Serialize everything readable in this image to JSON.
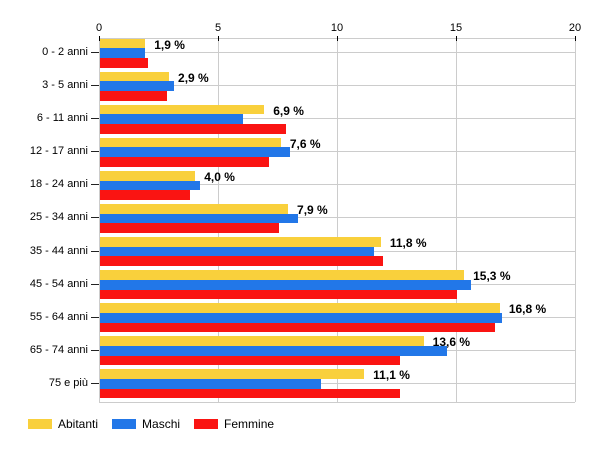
{
  "chart_data": {
    "type": "bar",
    "orientation": "horizontal",
    "title": "",
    "xlabel": "",
    "ylabel": "",
    "xlim": [
      0,
      20
    ],
    "x_ticks": [
      0,
      5,
      10,
      15,
      20
    ],
    "grid": true,
    "legend_position": "bottom",
    "categories": [
      "0 - 2 anni",
      "3 - 5 anni",
      "6 - 11 anni",
      "12 - 17 anni",
      "18 - 24 anni",
      "25 - 34 anni",
      "35 - 44 anni",
      "45 - 54 anni",
      "55 - 64 anni",
      "65 - 74 anni",
      "75 e più"
    ],
    "series": [
      {
        "name": "Abitanti",
        "color": "#F9D03C",
        "values": [
          1.9,
          2.9,
          6.9,
          7.6,
          4.0,
          7.9,
          11.8,
          15.3,
          16.8,
          13.6,
          11.1
        ]
      },
      {
        "name": "Maschi",
        "color": "#2277E8",
        "values": [
          1.9,
          3.1,
          6.0,
          8.0,
          4.2,
          8.3,
          11.5,
          15.6,
          16.9,
          14.6,
          9.3
        ]
      },
      {
        "name": "Femmine",
        "color": "#FA1412",
        "values": [
          2.0,
          2.8,
          7.8,
          7.1,
          3.8,
          7.5,
          11.9,
          15.0,
          16.6,
          12.6,
          12.6
        ]
      }
    ],
    "data_labels": [
      "1,9 %",
      "2,9 %",
      "6,9 %",
      "7,6 %",
      "4,0 %",
      "7,9 %",
      "11,8 %",
      "15,3 %",
      "16,8 %",
      "13,6 %",
      "11,1 %"
    ],
    "x_tick_labels": [
      "0",
      "5",
      "10",
      "15",
      "20"
    ]
  },
  "colors": {
    "grid": "#cccccc",
    "axis": "#cccccc",
    "tick": "#000000",
    "text": "#000000"
  }
}
